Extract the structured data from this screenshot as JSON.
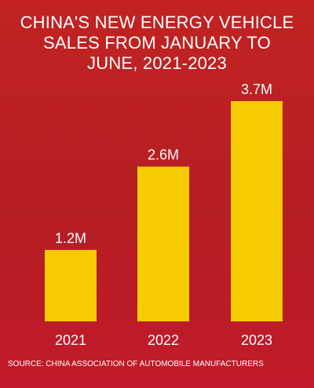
{
  "title_lines": [
    "CHINA'S NEW ENERGY VEHICLE",
    "SALES FROM JANUARY TO",
    "JUNE, 2021-2023"
  ],
  "source": "SOURCE:  CHINA ASSOCIATION OF AUTOMOBILE MANUFACTURERS",
  "colors": {
    "background": "#b51e23",
    "bar": "#f6cc00",
    "text": "#ffffff"
  },
  "chart_data": {
    "type": "bar",
    "title": "CHINA'S NEW ENERGY VEHICLE SALES FROM JANUARY TO JUNE, 2021-2023",
    "categories": [
      "2021",
      "2022",
      "2023"
    ],
    "values": [
      1.2,
      2.6,
      3.7
    ],
    "data_labels": [
      "1.2M",
      "2.6M",
      "3.7M"
    ],
    "unit": "million",
    "xlabel": "",
    "ylabel": "",
    "ylim": [
      0,
      4
    ],
    "grid": false,
    "legend": "none"
  }
}
